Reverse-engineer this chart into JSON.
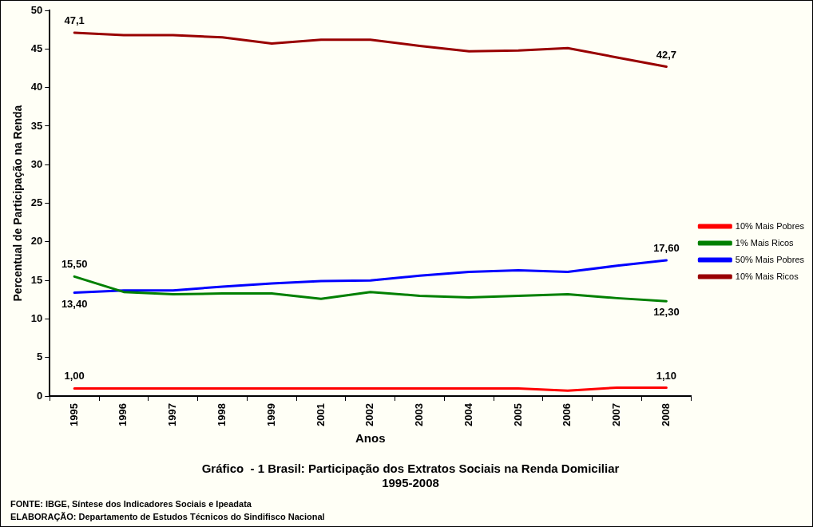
{
  "chart_data": {
    "type": "line",
    "title": "Gráfico  - 1 Brasil: Participação dos Extratos Sociais na Renda Domiciliar\n1995-2008",
    "xlabel": "Anos",
    "ylabel": "Percentual de Participação na Renda",
    "categories": [
      "1995",
      "1996",
      "1997",
      "1998",
      "1999",
      "2001",
      "2002",
      "2003",
      "2004",
      "2005",
      "2006",
      "2007",
      "2008"
    ],
    "series": [
      {
        "name": "10% Mais Pobres",
        "color": "#ff0000",
        "values": [
          1.0,
          1.0,
          1.0,
          1.0,
          1.0,
          1.0,
          1.0,
          1.0,
          1.0,
          1.0,
          0.7,
          1.1,
          1.1
        ],
        "value_labels": [
          "1,00",
          null,
          null,
          null,
          null,
          null,
          null,
          null,
          null,
          null,
          null,
          null,
          "1,10"
        ]
      },
      {
        "name": "1% Mais Ricos",
        "color": "#008000",
        "values": [
          15.5,
          13.5,
          13.2,
          13.3,
          13.3,
          12.6,
          13.5,
          13.0,
          12.8,
          13.0,
          13.2,
          12.7,
          12.3
        ],
        "value_labels": [
          "15,50",
          null,
          null,
          null,
          null,
          null,
          null,
          null,
          null,
          null,
          null,
          null,
          "12,30"
        ]
      },
      {
        "name": "50% Mais Pobres",
        "color": "#0000ff",
        "values": [
          13.4,
          13.7,
          13.7,
          14.2,
          14.6,
          14.9,
          15.0,
          15.6,
          16.1,
          16.3,
          16.1,
          16.9,
          17.6
        ],
        "value_labels": [
          "13,40",
          null,
          null,
          null,
          null,
          null,
          null,
          null,
          null,
          null,
          null,
          null,
          "17,60"
        ]
      },
      {
        "name": "10% Mais Ricos",
        "color": "#990000",
        "values": [
          47.1,
          46.8,
          46.8,
          46.5,
          45.7,
          46.2,
          46.2,
          45.4,
          44.7,
          44.8,
          45.1,
          43.9,
          42.7
        ],
        "value_labels": [
          "47,1",
          null,
          null,
          null,
          null,
          null,
          null,
          null,
          null,
          null,
          null,
          null,
          "42,7"
        ]
      }
    ],
    "ylim": [
      0,
      50
    ],
    "yticks": [
      0,
      5,
      10,
      15,
      20,
      25,
      30,
      35,
      40,
      45,
      50
    ],
    "grid": false,
    "legend": "right",
    "marker": "none",
    "line_style": "solid",
    "annotations": [
      "FONTE: IBGE, Síntese dos Indicadores Sociais e Ipeadata",
      "ELABORAÇÃO: Departamento de Estudos Técnicos do Sindifisco Nacional"
    ]
  }
}
